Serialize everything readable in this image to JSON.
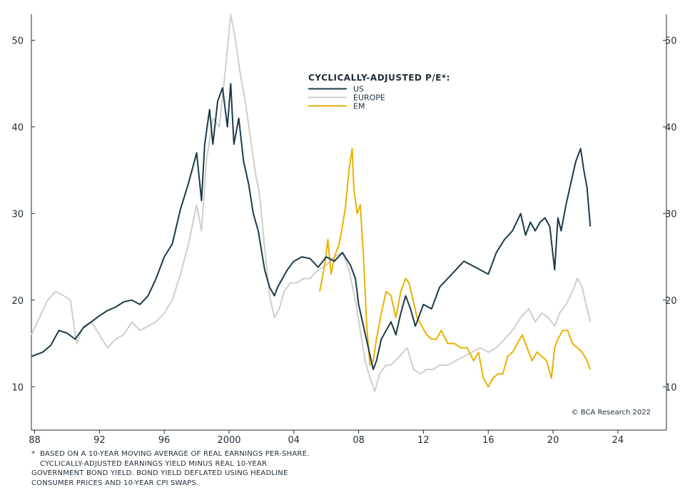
{
  "chart_data": {
    "type": "line",
    "legend_title": "CYCLICALLY-ADJUSTED P/E*:",
    "legend_position": "top-center",
    "grid": false,
    "x_range": [
      1987.8,
      2027.0
    ],
    "ylim": [
      5,
      53
    ],
    "x_ticks": [
      {
        "value": 1988,
        "label": "88"
      },
      {
        "value": 1992,
        "label": "92"
      },
      {
        "value": 1996,
        "label": "96"
      },
      {
        "value": 2000,
        "label": "2000"
      },
      {
        "value": 2004,
        "label": "04"
      },
      {
        "value": 2008,
        "label": "08"
      },
      {
        "value": 2012,
        "label": "12"
      },
      {
        "value": 2016,
        "label": "16"
      },
      {
        "value": 2020,
        "label": "20"
      },
      {
        "value": 2024,
        "label": "24"
      }
    ],
    "y_ticks_left": [
      10,
      20,
      30,
      40,
      50
    ],
    "y_ticks_right": [
      10,
      20,
      30,
      40,
      50
    ],
    "series": [
      {
        "name": "US",
        "color": "#1b3a4b",
        "x": [
          1987.8,
          1988.5,
          1989.0,
          1989.5,
          1990.0,
          1990.5,
          1991.0,
          1991.5,
          1992.0,
          1992.5,
          1993.0,
          1993.5,
          1994.0,
          1994.5,
          1995.0,
          1995.5,
          1996.0,
          1996.5,
          1997.0,
          1997.5,
          1998.0,
          1998.3,
          1998.5,
          1998.8,
          1999.0,
          1999.3,
          1999.6,
          1999.9,
          2000.1,
          2000.3,
          2000.6,
          2000.9,
          2001.2,
          2001.5,
          2001.8,
          2002.2,
          2002.5,
          2002.8,
          2003.0,
          2003.3,
          2003.6,
          2004.0,
          2004.5,
          2005.0,
          2005.5,
          2006.0,
          2006.5,
          2007.0,
          2007.5,
          2007.8,
          2008.0,
          2008.3,
          2008.6,
          2008.9,
          2009.1,
          2009.4,
          2009.7,
          2010.0,
          2010.3,
          2010.6,
          2010.9,
          2011.2,
          2011.5,
          2011.8,
          2012.0,
          2012.5,
          2013.0,
          2013.5,
          2014.0,
          2014.5,
          2015.0,
          2015.5,
          2016.0,
          2016.5,
          2017.0,
          2017.5,
          2018.0,
          2018.3,
          2018.6,
          2018.9,
          2019.2,
          2019.5,
          2019.8,
          2020.1,
          2020.3,
          2020.5,
          2020.8,
          2021.1,
          2021.4,
          2021.7,
          2021.9,
          2022.1,
          2022.3
        ],
        "values": [
          13.5,
          14.0,
          14.8,
          16.5,
          16.2,
          15.5,
          16.8,
          17.5,
          18.2,
          18.8,
          19.2,
          19.8,
          20.0,
          19.5,
          20.5,
          22.5,
          25.0,
          26.5,
          30.5,
          33.5,
          37.0,
          31.5,
          38.0,
          42.0,
          38.0,
          43.0,
          44.5,
          40.0,
          45.0,
          38.0,
          41.0,
          36.0,
          33.5,
          30.0,
          28.0,
          23.5,
          21.5,
          20.5,
          21.5,
          22.5,
          23.5,
          24.5,
          25.0,
          24.8,
          23.8,
          25.0,
          24.5,
          25.5,
          24.0,
          22.5,
          19.5,
          17.0,
          14.5,
          12.0,
          13.0,
          15.5,
          16.5,
          17.5,
          16.0,
          18.5,
          20.5,
          19.0,
          17.0,
          18.5,
          19.5,
          19.0,
          21.5,
          22.5,
          23.5,
          24.5,
          24.0,
          23.5,
          23.0,
          25.5,
          27.0,
          28.0,
          30.0,
          27.5,
          29.0,
          28.0,
          29.0,
          29.5,
          28.5,
          23.5,
          29.5,
          28.0,
          31.0,
          33.5,
          36.0,
          37.5,
          35.0,
          33.0,
          28.5
        ]
      },
      {
        "name": "EUROPE",
        "color": "#cfcfc8",
        "x": [
          1987.8,
          1988.3,
          1988.8,
          1989.3,
          1989.8,
          1990.2,
          1990.6,
          1991.0,
          1991.5,
          1992.0,
          1992.5,
          1993.0,
          1993.5,
          1994.0,
          1994.5,
          1995.0,
          1995.5,
          1996.0,
          1996.5,
          1997.0,
          1997.5,
          1998.0,
          1998.3,
          1998.6,
          1999.0,
          1999.4,
          1999.8,
          2000.1,
          2000.4,
          2000.7,
          2001.0,
          2001.3,
          2001.6,
          2001.9,
          2002.2,
          2002.5,
          2002.8,
          2003.1,
          2003.4,
          2003.8,
          2004.2,
          2004.6,
          2005.0,
          2005.5,
          2006.0,
          2006.5,
          2007.0,
          2007.4,
          2007.8,
          2008.1,
          2008.4,
          2008.7,
          2009.0,
          2009.3,
          2009.7,
          2010.0,
          2010.5,
          2011.0,
          2011.4,
          2011.8,
          2012.2,
          2012.6,
          2013.0,
          2013.5,
          2014.0,
          2014.5,
          2015.0,
          2015.5,
          2016.0,
          2016.5,
          2017.0,
          2017.5,
          2018.0,
          2018.5,
          2018.9,
          2019.3,
          2019.7,
          2020.1,
          2020.4,
          2020.8,
          2021.2,
          2021.5,
          2021.8,
          2022.1,
          2022.3
        ],
        "values": [
          16.0,
          18.0,
          20.0,
          21.0,
          20.5,
          20.0,
          15.0,
          17.0,
          17.5,
          16.0,
          14.5,
          15.5,
          16.0,
          17.5,
          16.5,
          17.0,
          17.5,
          18.5,
          20.0,
          23.0,
          26.5,
          31.0,
          28.0,
          36.0,
          41.0,
          40.0,
          47.0,
          53.0,
          50.0,
          46.0,
          43.0,
          39.0,
          35.0,
          32.0,
          26.0,
          20.5,
          18.0,
          19.0,
          21.0,
          22.0,
          22.0,
          22.5,
          22.5,
          23.5,
          24.0,
          25.0,
          25.5,
          23.5,
          20.0,
          16.5,
          13.0,
          11.0,
          9.5,
          11.5,
          12.5,
          12.5,
          13.5,
          14.5,
          12.0,
          11.5,
          12.0,
          12.0,
          12.5,
          12.5,
          13.0,
          13.5,
          14.0,
          14.5,
          14.0,
          14.5,
          15.5,
          16.5,
          18.0,
          19.0,
          17.5,
          18.5,
          18.0,
          17.0,
          18.5,
          19.5,
          21.0,
          22.5,
          21.5,
          19.0,
          17.5
        ]
      },
      {
        "name": "EM",
        "color": "#e8b100",
        "x": [
          2005.6,
          2005.9,
          2006.1,
          2006.3,
          2006.5,
          2006.8,
          2007.0,
          2007.2,
          2007.4,
          2007.6,
          2007.7,
          2007.9,
          2008.1,
          2008.3,
          2008.5,
          2008.7,
          2008.9,
          2009.1,
          2009.4,
          2009.7,
          2010.0,
          2010.3,
          2010.6,
          2010.9,
          2011.1,
          2011.3,
          2011.6,
          2011.9,
          2012.2,
          2012.5,
          2012.8,
          2013.1,
          2013.5,
          2013.9,
          2014.3,
          2014.7,
          2015.1,
          2015.4,
          2015.7,
          2016.0,
          2016.3,
          2016.6,
          2016.9,
          2017.2,
          2017.5,
          2017.8,
          2018.1,
          2018.4,
          2018.7,
          2019.0,
          2019.3,
          2019.6,
          2019.9,
          2020.1,
          2020.3,
          2020.6,
          2020.9,
          2021.2,
          2021.5,
          2021.8,
          2022.1,
          2022.3
        ],
        "values": [
          21.0,
          24.0,
          27.0,
          23.0,
          25.0,
          26.5,
          28.5,
          31.0,
          35.0,
          37.5,
          33.0,
          30.0,
          31.0,
          25.0,
          17.0,
          12.5,
          13.0,
          15.5,
          18.5,
          21.0,
          20.5,
          18.0,
          21.0,
          22.5,
          22.0,
          20.5,
          18.0,
          17.0,
          16.0,
          15.5,
          15.5,
          16.5,
          15.0,
          15.0,
          14.5,
          14.5,
          13.0,
          14.0,
          11.0,
          10.0,
          11.0,
          11.5,
          11.5,
          13.5,
          14.0,
          15.0,
          16.0,
          14.5,
          13.0,
          14.0,
          13.5,
          13.0,
          11.0,
          14.5,
          15.5,
          16.5,
          16.5,
          15.0,
          14.5,
          14.0,
          13.0,
          12.0
        ]
      }
    ]
  },
  "copyright": "© BCA Research 2022",
  "footnote": {
    "marker": "*",
    "lines": [
      "BASED ON A 10-YEAR MOVING AVERAGE OF REAL EARNINGS PER-SHARE.",
      "CYCLICALLY-ADJUSTED EARNINGS YIELD MINUS REAL 10-YEAR",
      "GOVERNMENT BOND YIELD. BOND YIELD DEFLATED USING HEADLINE",
      "CONSUMER PRICES AND 10-YEAR CPI SWAPS."
    ]
  }
}
